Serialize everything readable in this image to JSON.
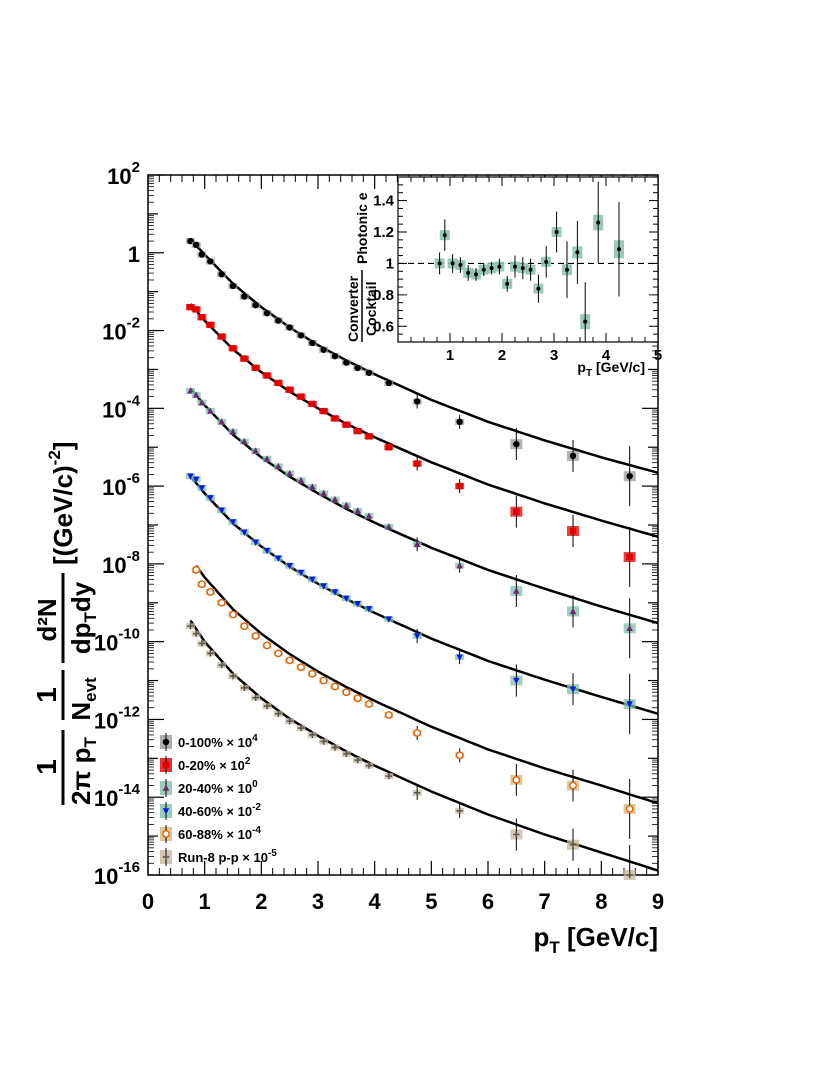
{
  "chart_data": [
    {
      "type": "scatter",
      "log_y": true,
      "xlim": [
        0,
        9
      ],
      "ylim": [
        1e-16,
        100
      ],
      "xlabel": "p_T [GeV/c]",
      "ylabel": "1/(2π p_T) 1/N_evt d²N/(dp_T dy) [(GeV/c)^-2]",
      "x_ticks": [
        "0",
        "1",
        "2",
        "3",
        "4",
        "5",
        "6",
        "7",
        "8",
        "9"
      ],
      "y_ticks": [
        {
          "exp": "2",
          "label": "10",
          "value": 100
        },
        {
          "exp": "",
          "label": "1",
          "value": 1
        },
        {
          "exp": "-2",
          "label": "10",
          "value": 0.01
        },
        {
          "exp": "-4",
          "label": "10",
          "value": 0.0001
        },
        {
          "exp": "-6",
          "label": "10",
          "value": 1e-06
        },
        {
          "exp": "-8",
          "label": "10",
          "value": 1e-08
        },
        {
          "exp": "-10",
          "label": "10",
          "value": 1e-10
        },
        {
          "exp": "-12",
          "label": "10",
          "value": 1e-12
        },
        {
          "exp": "-14",
          "label": "10",
          "value": 1e-14
        },
        {
          "exp": "-16",
          "label": "10",
          "value": 1e-16
        }
      ],
      "grid": false,
      "legend_position": "bottom-left",
      "series": [
        {
          "name": "0-100%",
          "scale": "× 10",
          "scale_exp": "4",
          "color": "#000000",
          "box_color": "#999999",
          "marker": "circle",
          "x": [
            0.75,
            0.85,
            0.95,
            1.1,
            1.3,
            1.5,
            1.7,
            1.9,
            2.1,
            2.3,
            2.5,
            2.7,
            2.9,
            3.1,
            3.3,
            3.5,
            3.7,
            3.9,
            4.25,
            4.75,
            5.5,
            6.5,
            7.5,
            8.5
          ],
          "y": [
            2.0,
            1.6,
            0.9,
            0.6,
            0.28,
            0.14,
            0.075,
            0.045,
            0.028,
            0.018,
            0.012,
            0.0075,
            0.0048,
            0.0032,
            0.0022,
            0.0015,
            0.0011,
            0.00082,
            0.00045,
            0.00015,
            4.5e-05,
            1.2e-05,
            6e-06,
            1.8e-06
          ]
        },
        {
          "name": "0-20%",
          "scale": "× 10",
          "scale_exp": "2",
          "color": "#e00000",
          "box_color": "#e00000",
          "marker": "square",
          "x": [
            0.75,
            0.85,
            0.95,
            1.1,
            1.3,
            1.5,
            1.7,
            1.9,
            2.1,
            2.3,
            2.5,
            2.7,
            2.9,
            3.1,
            3.3,
            3.5,
            3.7,
            3.9,
            4.25,
            4.75,
            5.5,
            6.5,
            7.5,
            8.5
          ],
          "y": [
            0.04,
            0.035,
            0.022,
            0.014,
            0.007,
            0.0035,
            0.0019,
            0.0011,
            0.0007,
            0.00045,
            0.0003,
            0.0002,
            0.00013,
            8.5e-05,
            5.5e-05,
            3.8e-05,
            2.6e-05,
            1.9e-05,
            1e-05,
            3.8e-06,
            1e-06,
            2.2e-07,
            7e-08,
            1.5e-08
          ]
        },
        {
          "name": "20-40%",
          "scale": "× 10",
          "scale_exp": "0",
          "color": "#6b2a6b",
          "box_color": "#7fbfa8",
          "marker": "triangle-up",
          "x": [
            0.75,
            0.85,
            0.95,
            1.1,
            1.3,
            1.5,
            1.7,
            1.9,
            2.1,
            2.3,
            2.5,
            2.7,
            2.9,
            3.1,
            3.3,
            3.5,
            3.7,
            3.9,
            4.25,
            4.75,
            5.5,
            6.5,
            7.5,
            8.5
          ],
          "y": [
            0.00028,
            0.00022,
            0.00014,
            8.5e-05,
            4.5e-05,
            2.5e-05,
            1.4e-05,
            8e-06,
            5e-06,
            3.2e-06,
            2.1e-06,
            1.4e-06,
            9.5e-07,
            6.5e-07,
            4.5e-07,
            3.2e-07,
            2.3e-07,
            1.7e-07,
            9e-08,
            3.2e-08,
            9e-09,
            2e-09,
            6e-10,
            2.2e-10
          ]
        },
        {
          "name": "40-60%",
          "scale": "× 10",
          "scale_exp": "-2",
          "color": "#0a18e0",
          "box_color": "#7fbfa8",
          "marker": "triangle-down",
          "x": [
            0.75,
            0.85,
            0.95,
            1.1,
            1.3,
            1.5,
            1.7,
            1.9,
            2.1,
            2.3,
            2.5,
            2.7,
            2.9,
            3.1,
            3.3,
            3.5,
            3.7,
            3.9,
            4.25,
            4.75,
            5.5,
            6.5,
            7.5,
            8.5
          ],
          "y": [
            1.8e-06,
            1.5e-06,
            9e-07,
            5e-07,
            2.4e-07,
            1.2e-07,
            6.5e-08,
            3.6e-08,
            2.2e-08,
            1.4e-08,
            9e-09,
            6e-09,
            4e-09,
            2.7e-09,
            1.9e-09,
            1.3e-09,
            9.5e-10,
            7e-10,
            3.8e-10,
            1.4e-10,
            4e-11,
            1e-11,
            6e-12,
            2.5e-12
          ]
        },
        {
          "name": "60-88%",
          "scale": "× 10",
          "scale_exp": "-4",
          "color": "#e06000",
          "box_color": "#d4b87a",
          "marker": "open-circle",
          "x": [
            0.85,
            0.95,
            1.1,
            1.3,
            1.5,
            1.7,
            1.9,
            2.1,
            2.3,
            2.5,
            2.7,
            2.9,
            3.1,
            3.3,
            3.5,
            3.7,
            3.9,
            4.25,
            4.75,
            5.5,
            6.5,
            7.5,
            8.5
          ],
          "y": [
            7e-09,
            3e-09,
            1.9e-09,
            1e-09,
            5e-10,
            2.5e-10,
            1.4e-10,
            8e-11,
            5e-11,
            3.3e-11,
            2.2e-11,
            1.5e-11,
            1e-11,
            7e-12,
            5e-12,
            3.5e-12,
            2.5e-12,
            1.3e-12,
            4.5e-13,
            1.2e-13,
            2.8e-14,
            2e-14,
            5e-15
          ]
        },
        {
          "name": "Run-8 p-p",
          "scale": "× 10",
          "scale_exp": "-5",
          "color": "#555555",
          "box_color": "#c8b89a",
          "marker": "cross",
          "x": [
            0.75,
            0.85,
            0.95,
            1.1,
            1.3,
            1.5,
            1.7,
            1.9,
            2.1,
            2.3,
            2.5,
            2.7,
            2.9,
            3.1,
            3.3,
            3.5,
            3.7,
            3.9,
            4.25,
            4.75,
            5.5,
            6.5,
            7.5,
            8.5
          ],
          "y": [
            2.5e-10,
            1.6e-10,
            9e-11,
            5e-11,
            2.5e-11,
            1.3e-11,
            6.5e-12,
            3.6e-12,
            2.2e-12,
            1.4e-12,
            9e-13,
            6e-13,
            4e-13,
            2.7e-13,
            1.9e-13,
            1.3e-13,
            9e-14,
            6.5e-14,
            3.5e-14,
            1.3e-14,
            4.5e-15,
            1.1e-15,
            6e-16,
            1e-16
          ]
        }
      ],
      "fits": [
        {
          "x": [
            0.75,
            1,
            1.5,
            2,
            2.5,
            3,
            3.5,
            4,
            5,
            6,
            7,
            8,
            9
          ],
          "y": [
            2.2,
            0.9,
            0.16,
            0.04,
            0.012,
            0.0042,
            0.0017,
            0.00075,
            0.000165,
            4.5e-05,
            1.5e-05,
            5.5e-06,
            2.2e-06
          ]
        },
        {
          "x": [
            0.75,
            1,
            1.5,
            2,
            2.5,
            3,
            3.5,
            4,
            5,
            6,
            7,
            8,
            9
          ],
          "y": [
            0.048,
            0.018,
            0.0033,
            0.00085,
            0.00027,
            0.0001,
            4e-05,
            1.8e-05,
            4.1e-06,
            1.1e-06,
            3.6e-07,
            1.3e-07,
            5e-08
          ]
        },
        {
          "x": [
            0.75,
            1,
            1.5,
            2,
            2.5,
            3,
            3.5,
            4,
            5,
            6,
            7,
            8,
            9
          ],
          "y": [
            0.00032,
            0.00012,
            2.1e-05,
            5.5e-06,
            1.75e-06,
            6.5e-07,
            2.6e-07,
            1.15e-07,
            2.6e-08,
            7e-09,
            2.3e-09,
            8e-10,
            3e-10
          ]
        },
        {
          "x": [
            0.75,
            1,
            1.5,
            2,
            2.5,
            3,
            3.5,
            4,
            5,
            6,
            7,
            8,
            9
          ],
          "y": [
            1.8e-06,
            6.5e-07,
            1.1e-07,
            2.8e-08,
            8.5e-09,
            3.1e-09,
            1.25e-09,
            5.5e-10,
            1.2e-10,
            3.2e-11,
            1.05e-11,
            3.8e-12,
            1.4e-12
          ]
        },
        {
          "x": [
            0.85,
            1,
            1.5,
            2,
            2.5,
            3,
            3.5,
            4,
            5,
            6,
            7,
            8,
            9
          ],
          "y": [
            9e-09,
            4.5e-09,
            6.8e-10,
            1.6e-10,
            4.8e-11,
            1.7e-11,
            6.8e-12,
            3e-12,
            6.5e-13,
            1.7e-13,
            5.5e-14,
            2e-14,
            7e-15
          ]
        },
        {
          "x": [
            0.75,
            1,
            1.5,
            2,
            2.5,
            3,
            3.5,
            4,
            5,
            6,
            7,
            8,
            9
          ],
          "y": [
            3.5e-10,
            1e-10,
            1.5e-11,
            3.5e-12,
            1.05e-12,
            3.8e-13,
            1.5e-13,
            6.5e-14,
            1.4e-14,
            3.6e-15,
            1.1e-15,
            3.8e-16,
            1.3e-16
          ]
        }
      ]
    },
    {
      "type": "scatter",
      "title": "",
      "xlim": [
        0,
        5
      ],
      "ylim": [
        0.5,
        1.55
      ],
      "xlabel": "p_T [GeV/c]",
      "ylabel": "Converter/Cocktail Photonic e",
      "x_ticks": [
        "1",
        "2",
        "3",
        "4",
        "5"
      ],
      "y_ticks": [
        "0.6",
        "0.8",
        "1",
        "1.2",
        "1.4"
      ],
      "reference_line": 1,
      "series": [
        {
          "color": "#000000",
          "box_color": "#8fc4b0",
          "x": [
            0.8,
            0.9,
            1.05,
            1.2,
            1.35,
            1.5,
            1.65,
            1.8,
            1.95,
            2.1,
            2.25,
            2.4,
            2.55,
            2.7,
            2.85,
            3.05,
            3.25,
            3.45,
            3.6,
            3.85,
            4.25
          ],
          "y": [
            1.0,
            1.18,
            1.0,
            0.99,
            0.94,
            0.93,
            0.96,
            0.97,
            0.98,
            0.87,
            0.98,
            0.97,
            0.96,
            0.84,
            1.01,
            1.2,
            0.96,
            1.07,
            0.63,
            1.26,
            1.09
          ],
          "yerr": [
            0.07,
            0.1,
            0.06,
            0.05,
            0.05,
            0.04,
            0.04,
            0.04,
            0.05,
            0.05,
            0.07,
            0.07,
            0.07,
            0.09,
            0.1,
            0.13,
            0.18,
            0.2,
            0.25,
            0.26,
            0.3
          ]
        }
      ]
    }
  ],
  "labels": {
    "y_axis": {
      "frac1_num": "1",
      "frac1_den": "2π p",
      "frac1_sub": "T",
      "frac2_num": "1",
      "frac2_den": "N",
      "frac2_sub": "evt",
      "frac3_num": "d²N",
      "frac3_den": "dp",
      "frac3_sub": "T",
      "frac3_tail": "dy",
      "units": "[(GeV/c)",
      "units_exp": "-2",
      "units_close": "]"
    },
    "x_axis": {
      "main": "p",
      "sub": "T",
      "unit": " [GeV/c]"
    },
    "inset_y_top": "Converter",
    "inset_y_bottom": "Cocktail",
    "inset_y_side": "Photonic e",
    "inset_x": {
      "main": "p",
      "sub": "T",
      "unit": " [GeV/c]"
    }
  }
}
